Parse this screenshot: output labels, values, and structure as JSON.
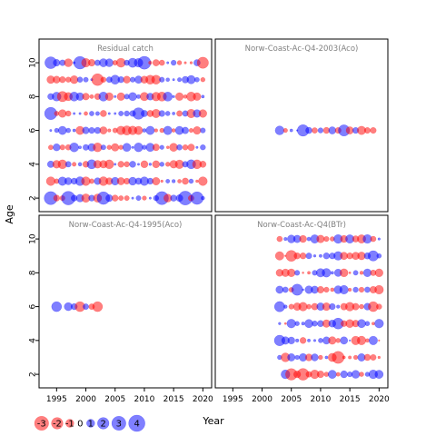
{
  "figure": {
    "ylabel": "Age",
    "xlabel": "Year"
  },
  "chart_data": {
    "type": "bubble-grid",
    "x_ticks": [
      1995,
      2000,
      2005,
      2010,
      2015,
      2020
    ],
    "y_ticks": [
      2,
      4,
      6,
      8,
      10
    ],
    "xlim": [
      1992,
      2021.5
    ],
    "ylim": [
      1.2,
      11.4
    ],
    "colors": {
      "negative": "#ff0000",
      "positive": "#0000ff",
      "panel_title": "#808080"
    },
    "legend": {
      "labels": [
        "-3",
        "-2",
        "-1",
        "0",
        "1",
        "2",
        "3",
        "4"
      ],
      "values": [
        -3,
        -2,
        -1,
        0,
        1,
        2,
        3,
        4
      ]
    },
    "panels": [
      {
        "title": "Residual catch",
        "years": [
          1994,
          2020
        ],
        "ages": [
          2,
          10
        ],
        "seed": 11,
        "amp": 1.3,
        "grid_ticks": true,
        "overrides": [
          [
            1994,
            2,
            2.6
          ],
          [
            1997,
            2,
            2.8
          ],
          [
            2003,
            2,
            2.4
          ],
          [
            2013,
            2,
            2.6
          ],
          [
            2017,
            2,
            2.9
          ],
          [
            2019,
            2,
            2.4
          ],
          [
            1994,
            10,
            2.1
          ],
          [
            1999,
            10,
            2.4
          ],
          [
            2010,
            10,
            2.5
          ],
          [
            2020,
            10,
            -1.9
          ],
          [
            1994,
            7,
            2.3
          ],
          [
            2002,
            9,
            -2.1
          ],
          [
            1996,
            8,
            -1.6
          ],
          [
            2009,
            7,
            2.0
          ]
        ]
      },
      {
        "title": "Norw-Coast-Ac-Q4-2003(Aco)",
        "years": [
          2003,
          2019
        ],
        "ages": [
          6,
          6
        ],
        "seed": 23,
        "amp": 1.0,
        "grid_ticks": false,
        "overrides": [
          [
            2003,
            6,
            1.2
          ],
          [
            2007,
            6,
            2.0
          ],
          [
            2014,
            6,
            1.9
          ],
          [
            2017,
            6,
            -1.1
          ]
        ]
      },
      {
        "title": "Norw-Coast-Ac-Q4-1995(Aco)",
        "years": [
          1995,
          2002
        ],
        "ages": [
          6,
          6
        ],
        "seed": 5,
        "amp": 1.0,
        "grid_ticks": false,
        "skip": [
          1996
        ],
        "overrides": [
          [
            1995,
            6,
            1.5
          ],
          [
            1997,
            6,
            1.0
          ],
          [
            1998,
            6,
            0.6
          ],
          [
            1999,
            6,
            -1.5
          ],
          [
            2000,
            6,
            0.5
          ],
          [
            2001,
            6,
            -0.5
          ],
          [
            2002,
            6,
            -1.5
          ]
        ]
      },
      {
        "title": "Norw-Coast-Ac-Q4(BTr)",
        "years": [
          2003,
          2020
        ],
        "ages": [
          2,
          10
        ],
        "seed": 41,
        "amp": 1.2,
        "grid_ticks": false,
        "skip_cells": [
          [
            2003,
            2
          ]
        ],
        "overrides": [
          [
            2005,
            2,
            -2.0
          ],
          [
            2007,
            2,
            -2.1
          ],
          [
            2003,
            4,
            1.7
          ],
          [
            2003,
            6,
            1.6
          ],
          [
            2005,
            9,
            -1.8
          ],
          [
            2013,
            3,
            -2.2
          ],
          [
            2006,
            7,
            1.9
          ],
          [
            2019,
            9,
            1.6
          ],
          [
            2013,
            5,
            1.8
          ],
          [
            2019,
            6,
            -1.5
          ]
        ]
      }
    ]
  }
}
